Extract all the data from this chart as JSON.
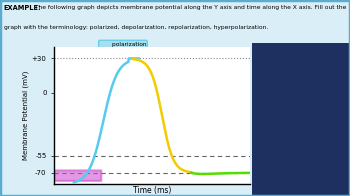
{
  "ylabel": "Membrane Potential (mV)",
  "xlabel": "Time (ms)",
  "ytick_vals": [
    30,
    0,
    -55,
    -70
  ],
  "ytick_labels": [
    "+30",
    "0",
    "-55",
    "-70"
  ],
  "outer_bg": "#daeef7",
  "outer_box_color": "#5badd0",
  "chart_bg": "#ffffff",
  "curve_cyan": "#55ccee",
  "curve_yellow": "#f0cc00",
  "curve_green": "#55dd00",
  "magenta_rect_color": "#cc44cc",
  "label_box_cyan_bg": "#aaddee",
  "label_box_cyan_edge": "#55ccee",
  "label_box_yellow_bg": "#eeee44",
  "label_box_yellow_edge": "#ccaa00",
  "label_box_green_bg": "#aaffaa",
  "label_box_green_edge": "#55dd00",
  "text_example": "EXAMPLE:",
  "text_desc1": " The following graph depicts membrane potential along the Y axis and time along the X axis. Fill out the",
  "text_desc2": "graph with the terminology: polarized, depolarization, repolarization, hyperpolarization.",
  "label_text": "____polarization",
  "person_bg": "#1a2a5a",
  "ymin": -80,
  "ymax": 40,
  "xmin": 0,
  "xmax": 10
}
